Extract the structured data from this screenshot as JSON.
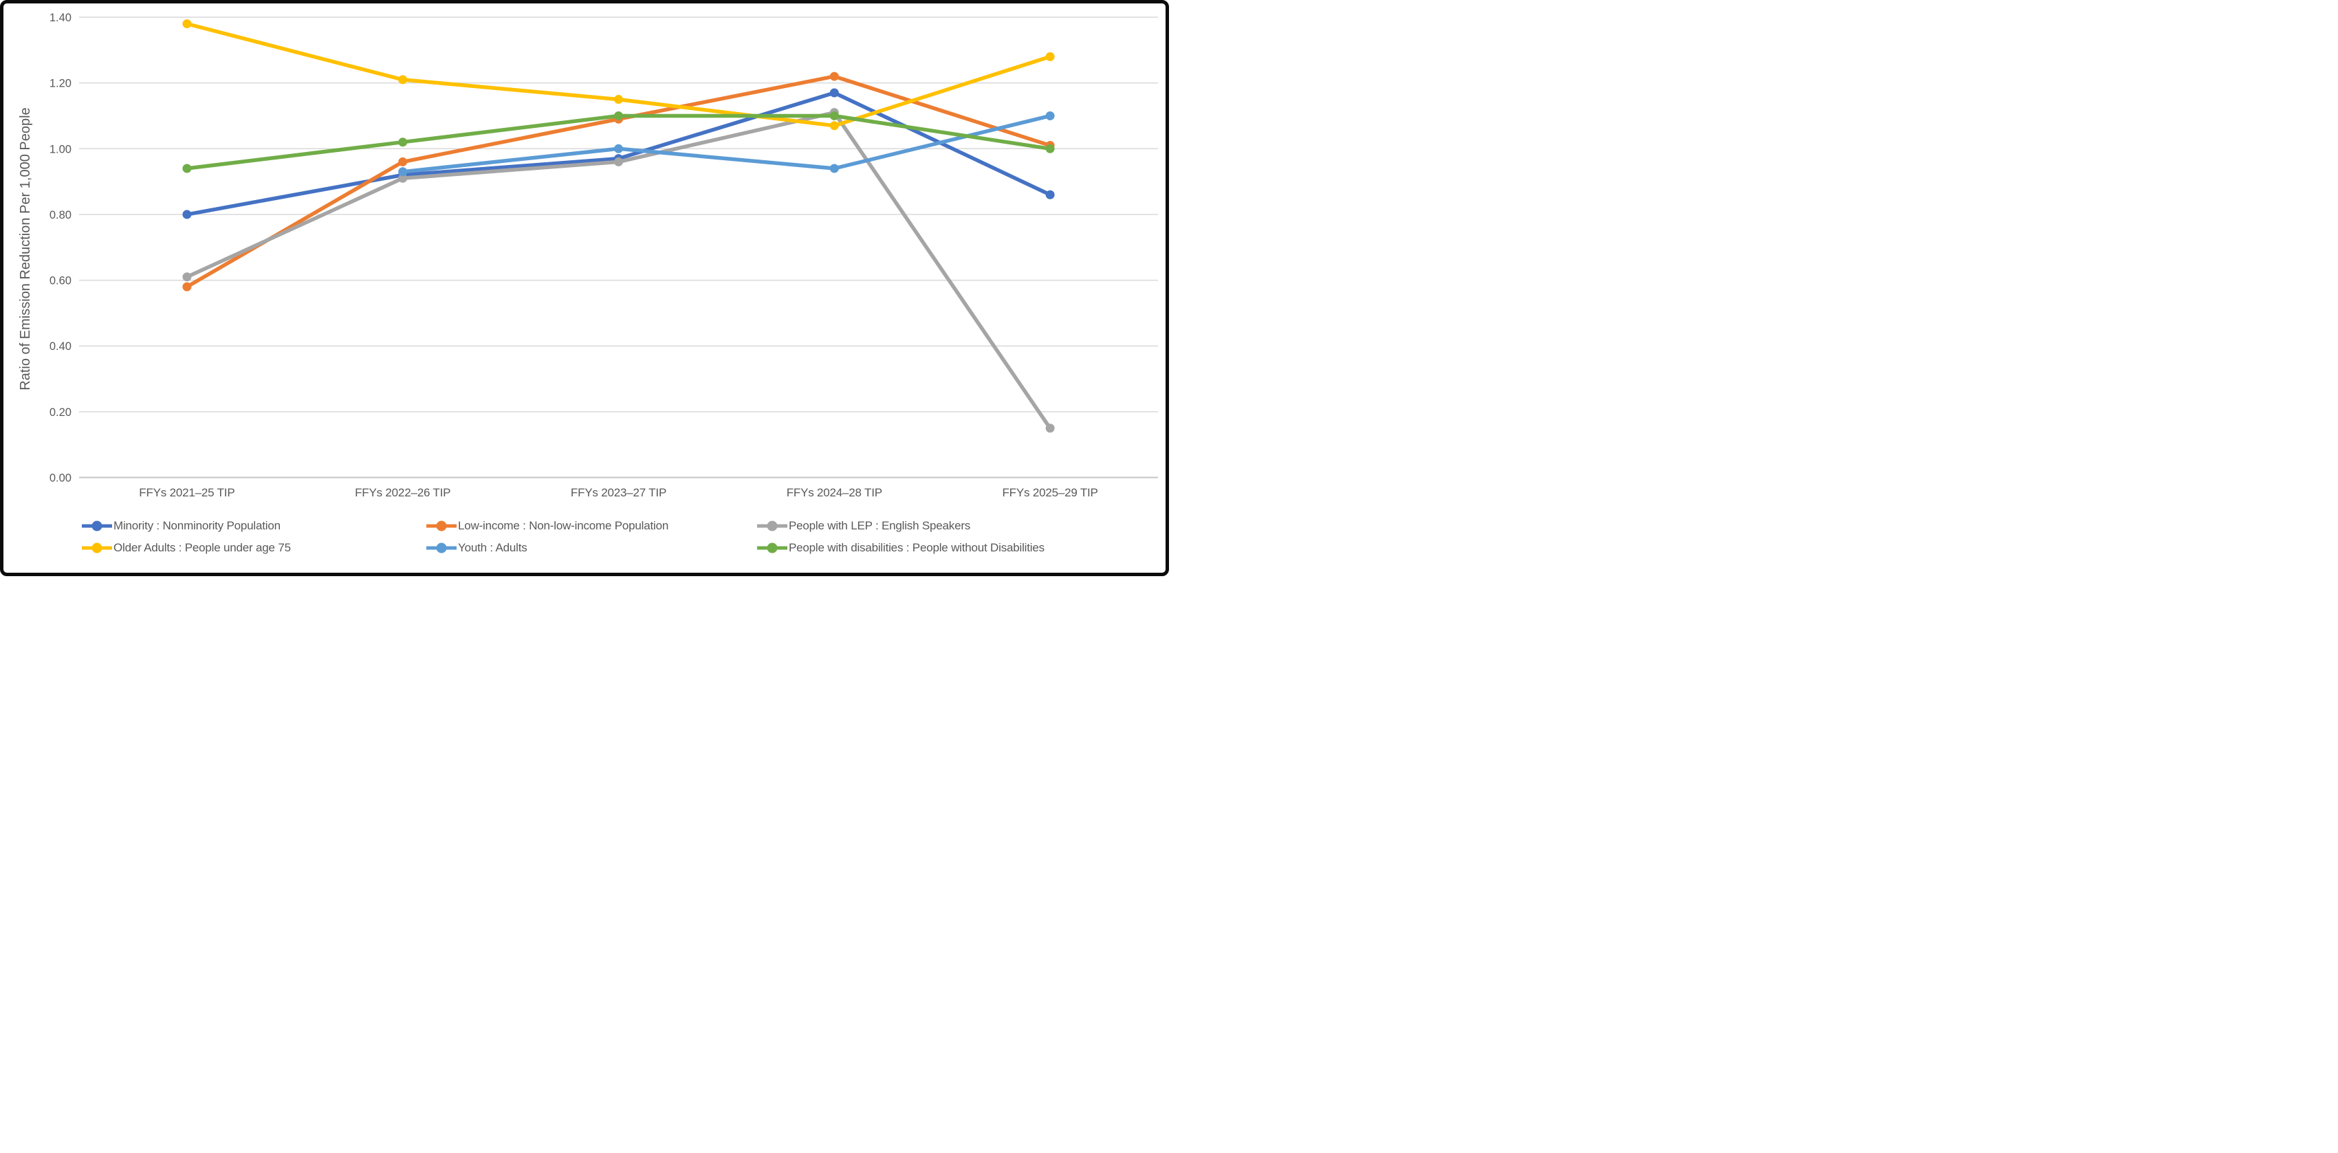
{
  "chart_data": {
    "type": "line",
    "title": "",
    "xlabel": "",
    "ylabel": "Ratio of Emission Reduction Per 1,000 People",
    "categories": [
      "FFYs 2021–25 TIP",
      "FFYs 2022–26 TIP",
      "FFYs 2023–27 TIP",
      "FFYs 2024–28 TIP",
      "FFYs 2025–29 TIP"
    ],
    "series": [
      {
        "name": "Minority : Nonminority Population",
        "color": "#4472C4",
        "values": [
          0.8,
          0.92,
          0.97,
          1.17,
          0.86
        ]
      },
      {
        "name": "Low-income : Non-low-income Population",
        "color": "#ED7D31",
        "values": [
          0.58,
          0.96,
          1.09,
          1.22,
          1.01
        ]
      },
      {
        "name": "People with LEP : English Speakers",
        "color": "#A5A5A5",
        "values": [
          0.61,
          0.91,
          0.96,
          1.11,
          0.15
        ]
      },
      {
        "name": "Older Adults : People under age 75",
        "color": "#FFC000",
        "values": [
          1.38,
          1.21,
          1.15,
          1.07,
          1.28
        ]
      },
      {
        "name": "Youth : Adults",
        "color": "#5B9BD5",
        "values": [
          null,
          0.93,
          1.0,
          0.94,
          1.1
        ]
      },
      {
        "name": "People with disabilities : People without Disabilities",
        "color": "#70AD47",
        "values": [
          0.94,
          1.02,
          1.1,
          1.1,
          1.0
        ]
      }
    ],
    "ylim": [
      0,
      1.4
    ],
    "ytick_step": 0.2,
    "ytick_format_decimals": 2,
    "grid": "horizontal",
    "legend_position": "bottom",
    "legend_rows": [
      [
        0,
        1,
        2
      ],
      [
        3,
        4,
        5
      ]
    ],
    "axis_text_color": "#595959",
    "gridline_color": "#D9D9D9",
    "baseline_color": "#C6C6C6",
    "frame_border_color": "#0b0b0b"
  }
}
